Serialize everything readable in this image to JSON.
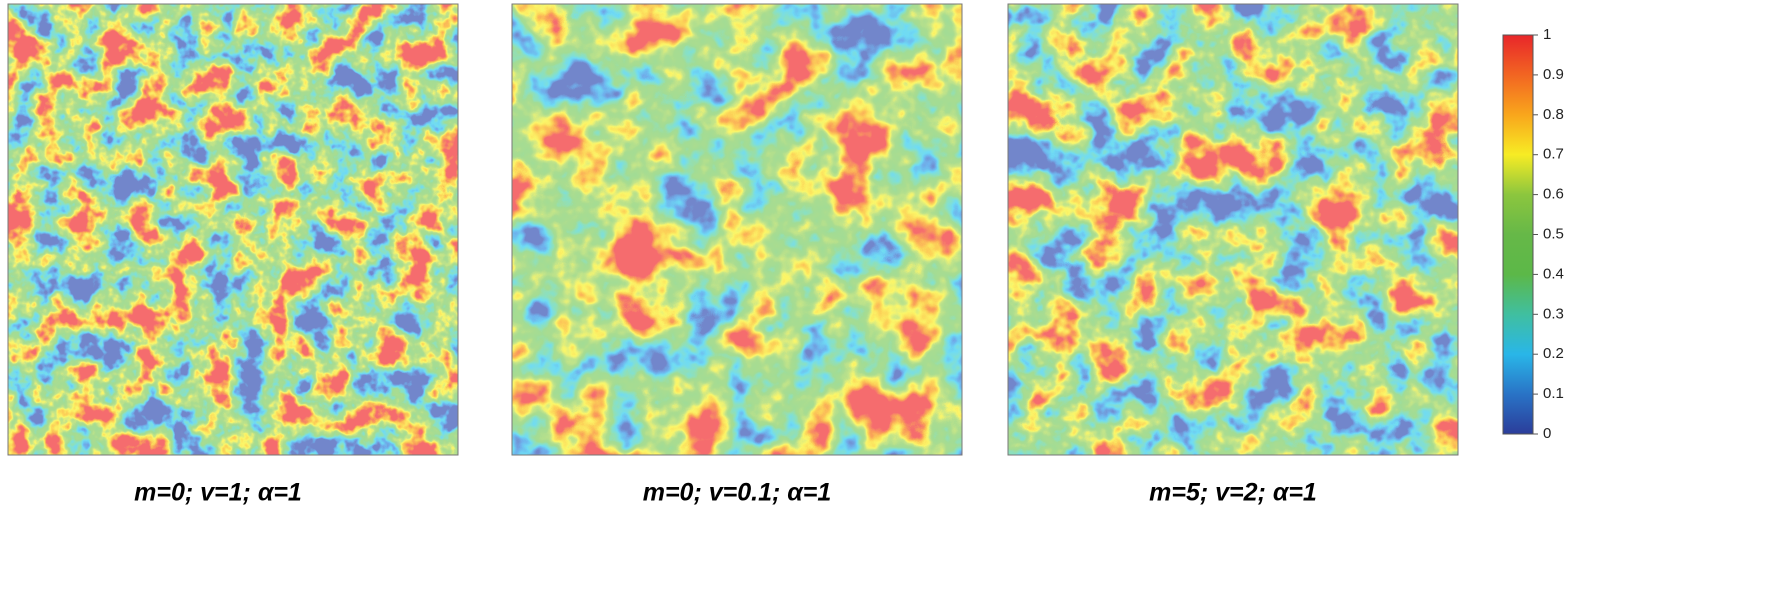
{
  "panels": [
    {
      "caption": "m=0; v=1; α=1"
    },
    {
      "caption": "m=0; v=0.1; α=1"
    },
    {
      "caption": "m=5; v=2; α=1"
    }
  ],
  "colorbar": {
    "lim": [
      0,
      1
    ],
    "ticks": [
      0,
      0.1,
      0.2,
      0.3,
      0.4,
      0.5,
      0.6,
      0.7,
      0.8,
      0.9,
      1
    ]
  }
}
